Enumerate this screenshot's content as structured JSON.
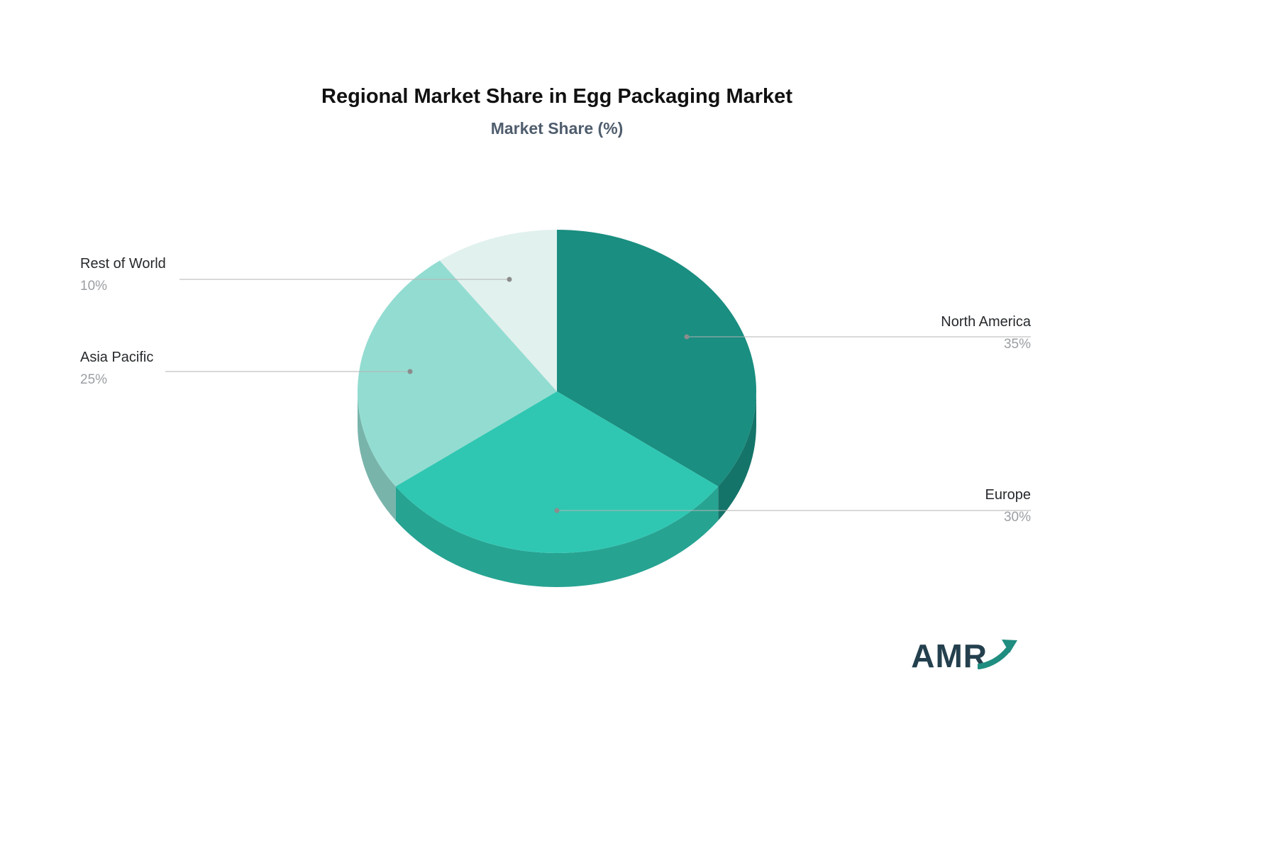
{
  "title": "Regional Market Share in Egg Packaging Market",
  "subtitle": "Market Share (%)",
  "chart_data": {
    "type": "pie",
    "style": "3d",
    "start_angle_deg": 0,
    "direction": "clockwise",
    "legend_position": "none",
    "labels": [
      "North America",
      "Europe",
      "Asia Pacific",
      "Rest of World"
    ],
    "values": [
      35,
      30,
      25,
      10
    ],
    "value_labels": [
      "35%",
      "30%",
      "25%",
      "10%"
    ],
    "colors": [
      "#1a8e80",
      "#2fc7b2",
      "#93dcd1",
      "#e1f1ee"
    ],
    "leader_line_color": "#b3b3b3",
    "leader_dot_color": "#8c8c8c"
  },
  "logo": {
    "text": "AMR",
    "text_color": "#24404e",
    "arrow_color": "#1f8d7f"
  }
}
